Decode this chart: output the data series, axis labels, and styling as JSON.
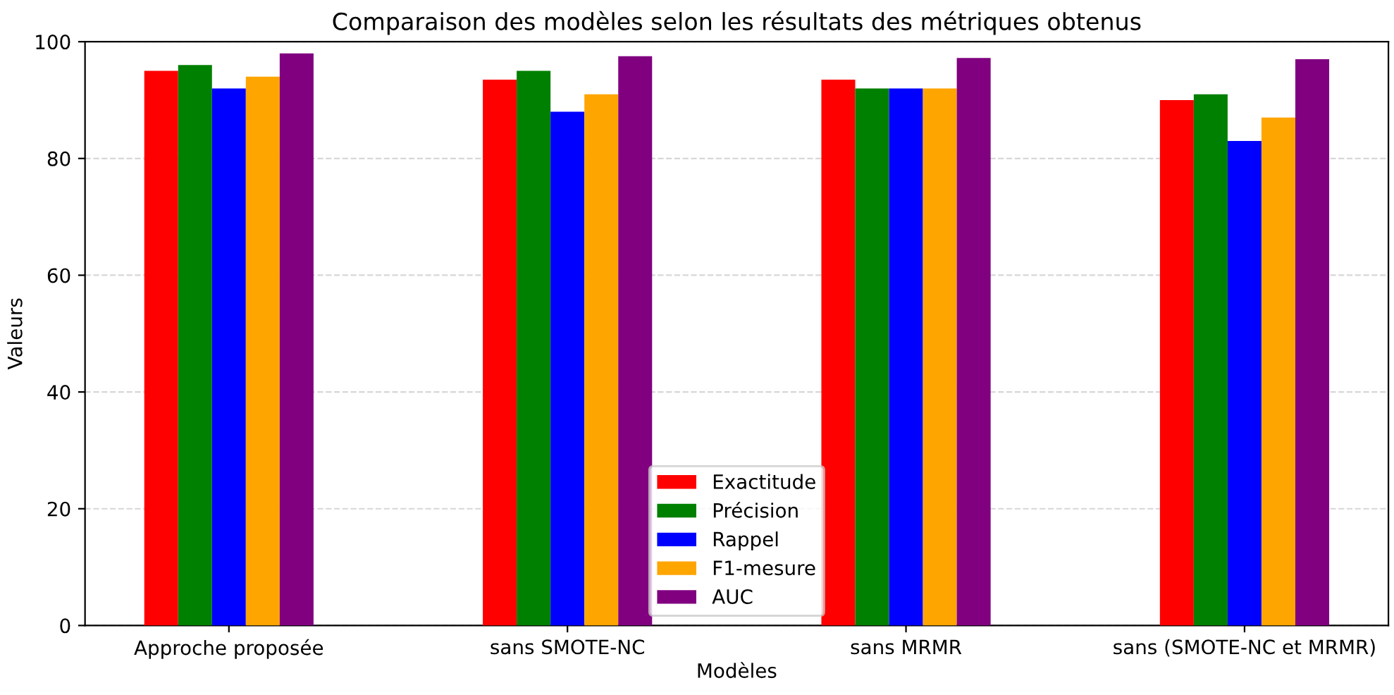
{
  "chart_data": {
    "type": "bar",
    "title": "Comparaison des modèles selon les résultats des métriques obtenus",
    "xlabel": "Modèles",
    "ylabel": "Valeurs",
    "categories": [
      "Approche proposée",
      "sans SMOTE-NC",
      "sans MRMR",
      "sans (SMOTE-NC et MRMR)"
    ],
    "series": [
      {
        "name": "Exactitude",
        "color": "#ff0000",
        "values": [
          95,
          93.5,
          93.5,
          90
        ]
      },
      {
        "name": "Précision",
        "color": "#008000",
        "values": [
          96,
          95,
          92,
          91
        ]
      },
      {
        "name": "Rappel",
        "color": "#0000ff",
        "values": [
          92,
          88,
          92,
          83
        ]
      },
      {
        "name": "F1-mesure",
        "color": "#ffa500",
        "values": [
          94,
          91,
          92,
          87
        ]
      },
      {
        "name": "AUC",
        "color": "#800080",
        "values": [
          98,
          97.5,
          97.2,
          97
        ]
      }
    ],
    "ylim": [
      0,
      100
    ],
    "yticks": [
      0,
      20,
      40,
      60,
      80,
      100
    ],
    "grid": "y",
    "legend": "bottom"
  }
}
